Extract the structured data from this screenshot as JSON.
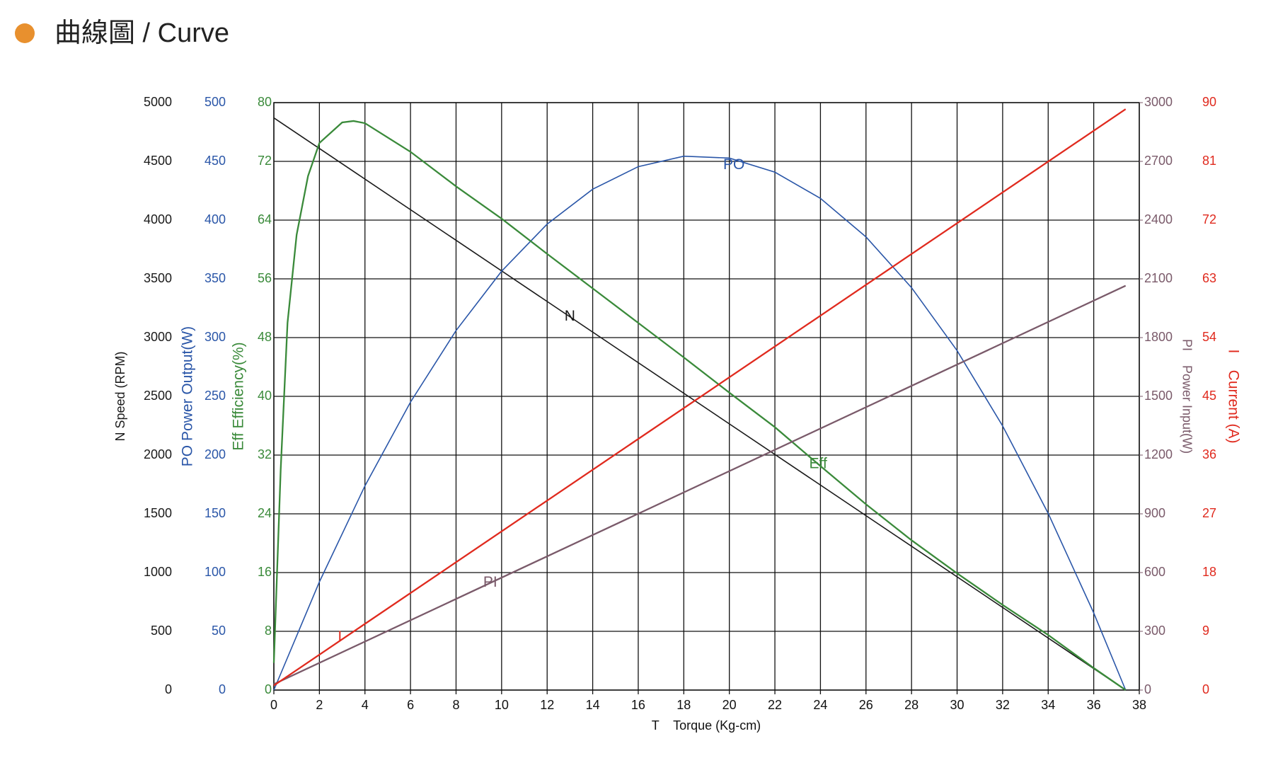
{
  "chart_data": {
    "type": "line",
    "title": "曲線圖 / Curve",
    "xlabel": "T    Torque (Kg-cm)",
    "xlim": [
      0,
      38
    ],
    "xticks": [
      0,
      2,
      4,
      6,
      8,
      10,
      12,
      14,
      16,
      18,
      20,
      22,
      24,
      26,
      28,
      30,
      32,
      34,
      36,
      38
    ],
    "grid": true,
    "axes": [
      {
        "label": "N Speed (RPM)",
        "side": "left",
        "color": "#1a1a1a",
        "lim": [
          0,
          5000
        ],
        "ticks": [
          0,
          500,
          1000,
          1500,
          2000,
          2500,
          3000,
          3500,
          4000,
          4500,
          5000
        ]
      },
      {
        "label": "PO Power Output(W)",
        "side": "left",
        "color": "#2a56a8",
        "lim": [
          0,
          500
        ],
        "ticks": [
          0,
          50,
          100,
          150,
          200,
          250,
          300,
          350,
          400,
          450,
          500
        ]
      },
      {
        "label": "Eff Efficiency(%)",
        "side": "left",
        "color": "#3a8a3a",
        "lim": [
          0,
          80
        ],
        "ticks": [
          0,
          8,
          16,
          24,
          32,
          40,
          48,
          56,
          64,
          72,
          80
        ]
      },
      {
        "label": "PI    Power Input(W)",
        "side": "right",
        "color": "#7a5a6a",
        "lim": [
          0,
          3000
        ],
        "ticks": [
          0,
          300,
          600,
          900,
          1200,
          1500,
          1800,
          2100,
          2400,
          2700,
          3000
        ]
      },
      {
        "label": "I    Current (A)",
        "side": "right",
        "color": "#e02a1e",
        "lim": [
          0,
          90
        ],
        "ticks": [
          0,
          9,
          18,
          27,
          36,
          45,
          54,
          63,
          72,
          81,
          90
        ]
      }
    ],
    "series": [
      {
        "name": "N",
        "color": "#1a1a1a",
        "axis": 0,
        "x": [
          0,
          37.4
        ],
        "values": [
          4870,
          0
        ]
      },
      {
        "name": "PO",
        "color": "#2a56a8",
        "axis": 1,
        "x": [
          0,
          2,
          4,
          6,
          8,
          10,
          12,
          14,
          16,
          18,
          20,
          22,
          24,
          26,
          28,
          30,
          32,
          34,
          36,
          37.4
        ],
        "values": [
          0,
          92.1,
          173.8,
          245.1,
          306.0,
          356.5,
          396.6,
          426.3,
          445.5,
          454.4,
          452.8,
          440.8,
          418.5,
          385.7,
          342.5,
          288.9,
          224.8,
          150.4,
          65.6,
          0
        ]
      },
      {
        "name": "Eff",
        "color": "#3a8a3a",
        "axis": 2,
        "x": [
          0,
          0.3,
          0.6,
          1,
          1.5,
          2,
          3,
          3.5,
          4,
          6,
          8,
          10,
          12,
          14,
          16,
          18,
          20,
          22,
          24,
          26,
          28,
          30,
          32,
          34,
          36,
          37.4
        ],
        "values": [
          3.7,
          30,
          50,
          62,
          70,
          74.5,
          77.3,
          77.5,
          77.2,
          73.3,
          68.6,
          64.2,
          59.4,
          54.7,
          50,
          45.3,
          40.5,
          35.8,
          30.5,
          25.3,
          20.4,
          15.9,
          11.6,
          7.5,
          3,
          0
        ]
      },
      {
        "name": "PI",
        "color": "#7a5a6a",
        "axis": 3,
        "x": [
          0,
          37.4
        ],
        "values": [
          30,
          2065
        ]
      },
      {
        "name": "I",
        "color": "#e02a1e",
        "axis": 4,
        "x": [
          0,
          37.4
        ],
        "values": [
          0.7,
          89
        ]
      }
    ]
  }
}
